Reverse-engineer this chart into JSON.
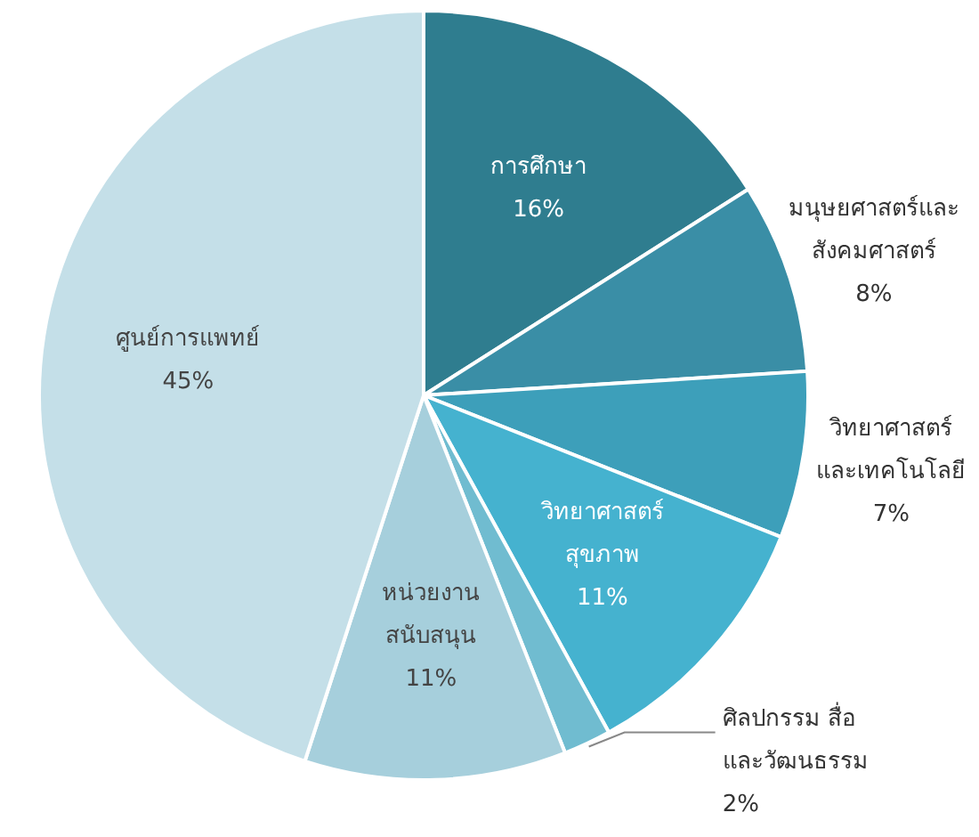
{
  "chart_data": {
    "type": "pie",
    "categories": [
      "การศึกษา",
      "มนุษยศาสตร์และ\nสังคมศาสตร์",
      "วิทยาศาสตร์\nและเทคโนโลยี",
      "วิทยาศาสตร์\nสุขภาพ",
      "ศิลปกรรม สื่อ\nและวัฒนธรรม",
      "หน่วยงาน\nสนับสนุน",
      "ศูนย์การแพทย์"
    ],
    "values": [
      16,
      8,
      7,
      11,
      2,
      11,
      45
    ],
    "colors": [
      "#2f7d8f",
      "#3a8ea6",
      "#3d9fba",
      "#45b2cf",
      "#70bcd0",
      "#a6cfdc",
      "#c4dfe8"
    ],
    "value_labels": [
      "16%",
      "8%",
      "7%",
      "11%",
      "2%",
      "11%",
      "45%"
    ],
    "legend": false
  }
}
